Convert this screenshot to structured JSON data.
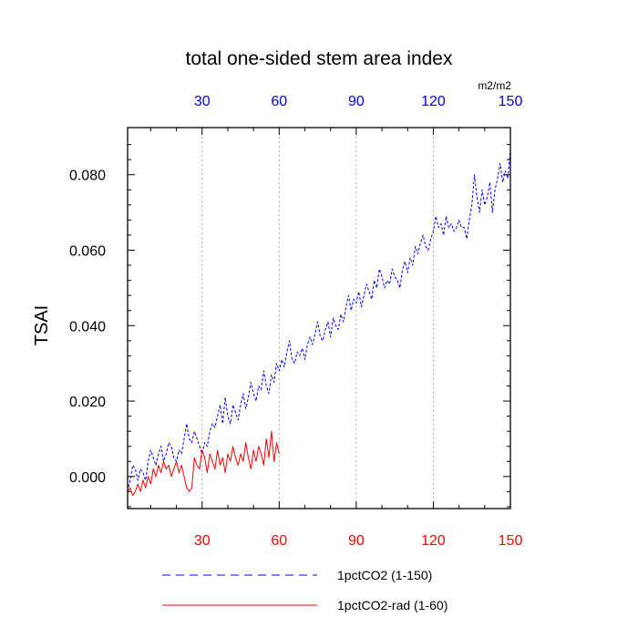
{
  "chart_data": {
    "type": "line",
    "title": "total one-sided stem area index",
    "units": "m2/m2",
    "ylabel": "TSAI",
    "xlim": [
      1,
      150
    ],
    "ylim": [
      -0.0085,
      0.0925
    ],
    "x_ticks": [
      30,
      60,
      90,
      120,
      150
    ],
    "x_tick_labels": [
      "30",
      "60",
      "90",
      "120",
      "150"
    ],
    "y_ticks": [
      0.0,
      0.02,
      0.04,
      0.06,
      0.08
    ],
    "y_tick_labels": [
      "0.000",
      "0.020",
      "0.040",
      "0.060",
      "0.080"
    ],
    "grid": "vertical dotted at x ticks",
    "top_axis_color": "#0000ff",
    "bottom_axis_color": "#ff0000",
    "series": [
      {
        "name": "1pctCO2 (1-150)",
        "color": "#0000ff",
        "dash": "dashed",
        "x_start": 1,
        "values": [
          -0.004,
          -0.001,
          0.003,
          0.002,
          -0.001,
          0.002,
          0.001,
          -0.001,
          0.004,
          0.007,
          0.005,
          0.003,
          0.006,
          0.008,
          0.004,
          0.006,
          0.009,
          0.008,
          0.005,
          0.004,
          0.007,
          0.006,
          0.01,
          0.014,
          0.01,
          0.009,
          0.012,
          0.01,
          0.008,
          0.006,
          0.009,
          0.008,
          0.012,
          0.014,
          0.013,
          0.016,
          0.019,
          0.014,
          0.021,
          0.016,
          0.014,
          0.019,
          0.017,
          0.015,
          0.019,
          0.022,
          0.018,
          0.021,
          0.025,
          0.022,
          0.02,
          0.024,
          0.023,
          0.028,
          0.024,
          0.022,
          0.027,
          0.025,
          0.03,
          0.028,
          0.031,
          0.029,
          0.033,
          0.036,
          0.031,
          0.03,
          0.033,
          0.032,
          0.034,
          0.031,
          0.035,
          0.037,
          0.035,
          0.038,
          0.041,
          0.037,
          0.036,
          0.039,
          0.041,
          0.037,
          0.042,
          0.04,
          0.039,
          0.043,
          0.041,
          0.045,
          0.048,
          0.044,
          0.047,
          0.046,
          0.049,
          0.045,
          0.048,
          0.051,
          0.049,
          0.047,
          0.052,
          0.05,
          0.055,
          0.053,
          0.05,
          0.052,
          0.051,
          0.055,
          0.053,
          0.052,
          0.05,
          0.055,
          0.057,
          0.054,
          0.058,
          0.056,
          0.061,
          0.059,
          0.062,
          0.064,
          0.061,
          0.06,
          0.063,
          0.065,
          0.069,
          0.066,
          0.067,
          0.064,
          0.069,
          0.066,
          0.067,
          0.065,
          0.066,
          0.068,
          0.066,
          0.066,
          0.063,
          0.068,
          0.072,
          0.08,
          0.074,
          0.07,
          0.076,
          0.072,
          0.074,
          0.078,
          0.07,
          0.076,
          0.079,
          0.083,
          0.078,
          0.081,
          0.079,
          0.087
        ]
      },
      {
        "name": "1pctCO2-rad (1-60)",
        "color": "#ff0000",
        "dash": "solid",
        "x_start": 1,
        "values": [
          -0.004,
          -0.003,
          -0.005,
          -0.004,
          -0.002,
          -0.004,
          -0.001,
          -0.003,
          0.0,
          -0.002,
          0.002,
          0.0,
          0.003,
          0.001,
          0.004,
          0.002,
          0.003,
          0.0,
          0.002,
          0.004,
          0.001,
          0.003,
          0.0,
          -0.003,
          -0.004,
          -0.003,
          0.005,
          0.003,
          0.002,
          0.007,
          0.005,
          0.001,
          0.006,
          0.004,
          0.002,
          0.007,
          0.003,
          0.005,
          0.001,
          0.006,
          0.004,
          0.008,
          0.005,
          0.003,
          0.006,
          0.004,
          0.009,
          0.005,
          0.002,
          0.007,
          0.004,
          0.008,
          0.006,
          0.003,
          0.01,
          0.005,
          0.012,
          0.004,
          0.009,
          0.006
        ]
      }
    ]
  }
}
